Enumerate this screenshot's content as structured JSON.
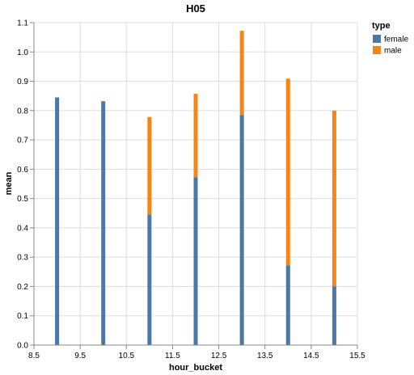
{
  "chart_data": {
    "type": "bar",
    "stacked": true,
    "title": "H05",
    "xlabel": "hour_bucket",
    "ylabel": "mean",
    "xlim": [
      8.5,
      15.5
    ],
    "ylim": [
      0,
      1.1
    ],
    "x_ticks": [
      "8.5",
      "9.5",
      "10.5",
      "11.5",
      "12.5",
      "13.5",
      "14.5",
      "15.5"
    ],
    "y_ticks": [
      "0.0",
      "0.1",
      "0.2",
      "0.3",
      "0.4",
      "0.5",
      "0.6",
      "0.7",
      "0.8",
      "0.9",
      "1.0",
      "1.1"
    ],
    "grid": true,
    "legend_title": "type",
    "legend_position": "top-right",
    "x": [
      9,
      10,
      11,
      12,
      13,
      14,
      15
    ],
    "series": [
      {
        "name": "female",
        "color": "#4c78a8",
        "values": [
          0.845,
          0.832,
          0.445,
          0.572,
          0.785,
          0.272,
          0.2
        ]
      },
      {
        "name": "male",
        "color": "#f58518",
        "values": [
          0,
          0,
          0.333,
          0.285,
          0.287,
          0.637,
          0.6
        ]
      }
    ]
  }
}
